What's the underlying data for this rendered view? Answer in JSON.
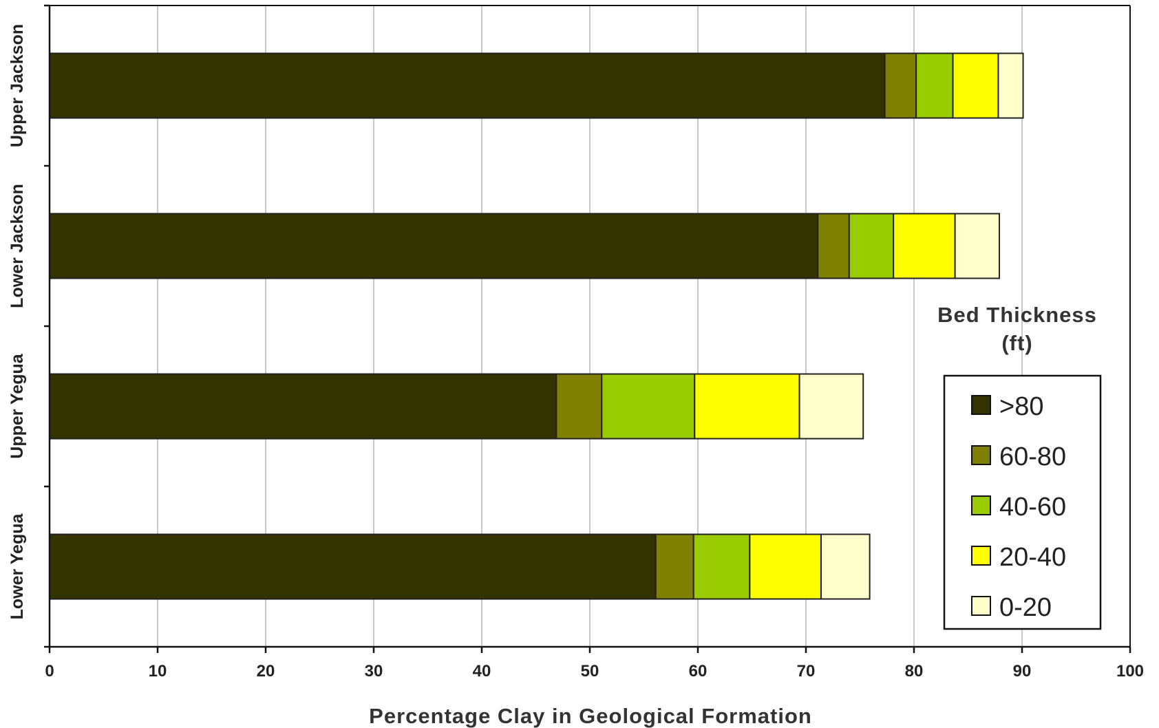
{
  "chart_data": {
    "type": "bar",
    "orientation": "horizontal",
    "stacked": true,
    "title": "",
    "xlabel": "Percentage Clay in Geological Formation",
    "ylabel": "",
    "xlim": [
      0,
      100
    ],
    "x_ticks": [
      0,
      10,
      20,
      30,
      40,
      50,
      60,
      70,
      80,
      90,
      100
    ],
    "grid": true,
    "categories": [
      "Upper Jackson",
      "Lower Jackson",
      "Upper Yegua",
      "Lower Yegua"
    ],
    "series": [
      {
        "name": ">80",
        "color": "#333300",
        "values": [
          77.3,
          71.1,
          46.9,
          56.1
        ]
      },
      {
        "name": "60-80",
        "color": "#808000",
        "values": [
          2.9,
          2.9,
          4.2,
          3.5
        ]
      },
      {
        "name": "40-60",
        "color": "#99cc00",
        "values": [
          3.4,
          4.1,
          8.6,
          5.2
        ]
      },
      {
        "name": "20-40",
        "color": "#ffff00",
        "values": [
          4.2,
          5.7,
          9.7,
          6.6
        ]
      },
      {
        "name": "0-20",
        "color": "#ffffcc",
        "values": [
          2.3,
          4.1,
          5.9,
          4.5
        ]
      }
    ],
    "legend": {
      "title": "Bed Thickness (ft)",
      "title_lines": [
        "Bed Thickness",
        "(ft)"
      ],
      "placement": "right"
    }
  }
}
